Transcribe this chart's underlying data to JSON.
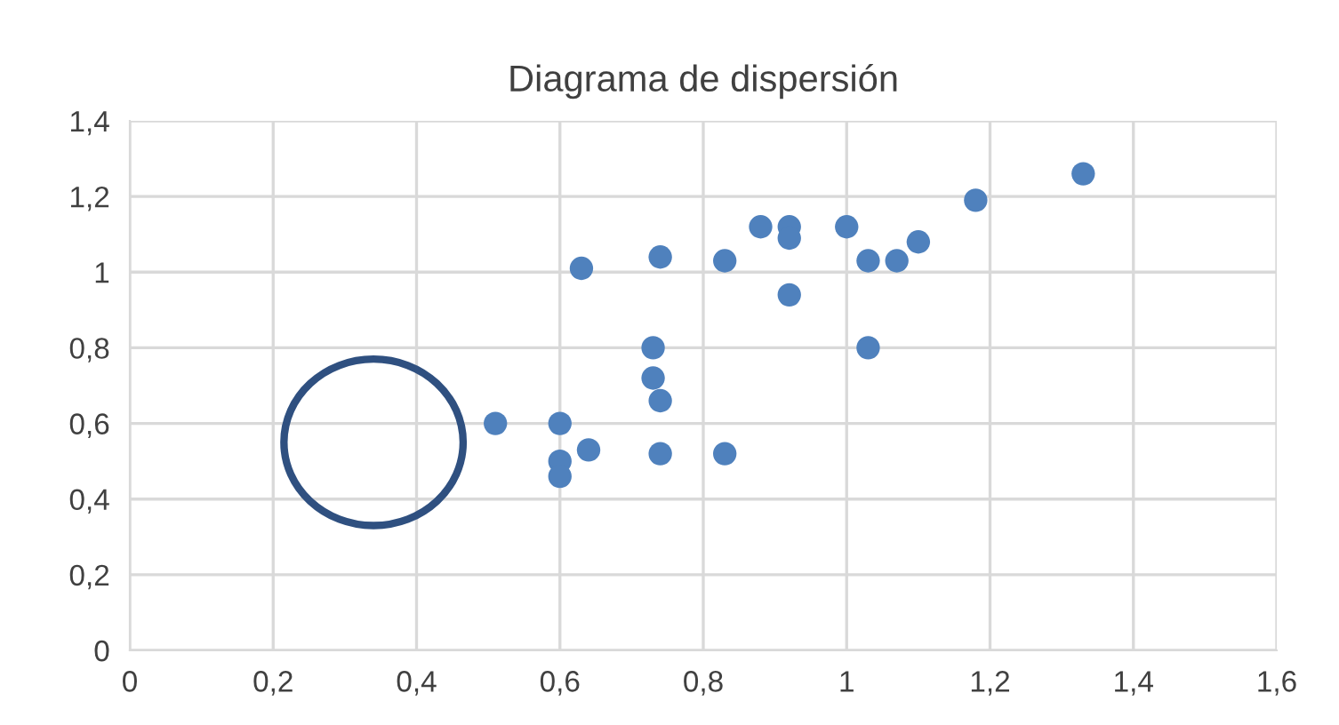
{
  "chart_data": {
    "type": "scatter",
    "title": "Diagrama de dispersión",
    "x": [
      0.51,
      0.6,
      0.6,
      0.6,
      0.64,
      0.63,
      0.74,
      0.73,
      0.73,
      0.74,
      0.74,
      0.83,
      0.83,
      0.88,
      0.92,
      0.92,
      0.92,
      1.0,
      1.03,
      1.03,
      1.07,
      1.1,
      1.18,
      1.33
    ],
    "series": [
      {
        "color": "#4f81bd",
        "values": [
          0.6,
          0.6,
          0.5,
          0.46,
          0.53,
          1.01,
          1.04,
          0.8,
          0.72,
          0.66,
          0.52,
          1.03,
          0.52,
          1.12,
          1.12,
          1.09,
          0.94,
          1.12,
          1.03,
          0.8,
          1.03,
          1.08,
          1.19,
          1.26
        ]
      }
    ],
    "xlim": [
      0,
      1.6
    ],
    "xticks": [
      {
        "value": 0,
        "label": "0"
      },
      {
        "value": 0.2,
        "label": "0,2"
      },
      {
        "value": 0.4,
        "label": "0,4"
      },
      {
        "value": 0.6,
        "label": "0,6"
      },
      {
        "value": 0.8,
        "label": "0,8"
      },
      {
        "value": 1,
        "label": "1"
      },
      {
        "value": 1.2,
        "label": "1,2"
      },
      {
        "value": 1.4,
        "label": "1,4"
      },
      {
        "value": 1.6,
        "label": "1,6"
      }
    ],
    "ylim": [
      0,
      1.4
    ],
    "yticks": [
      {
        "value": 0,
        "label": "0"
      },
      {
        "value": 0.2,
        "label": "0,2"
      },
      {
        "value": 0.4,
        "label": "0,4"
      },
      {
        "value": 0.6,
        "label": "0,6"
      },
      {
        "value": 0.8,
        "label": "0,8"
      },
      {
        "value": 1,
        "label": "1"
      },
      {
        "value": 1.2,
        "label": "1,2"
      },
      {
        "value": 1.4,
        "label": "1,4"
      }
    ],
    "grid": true,
    "marker": "circle",
    "legend": false
  }
}
